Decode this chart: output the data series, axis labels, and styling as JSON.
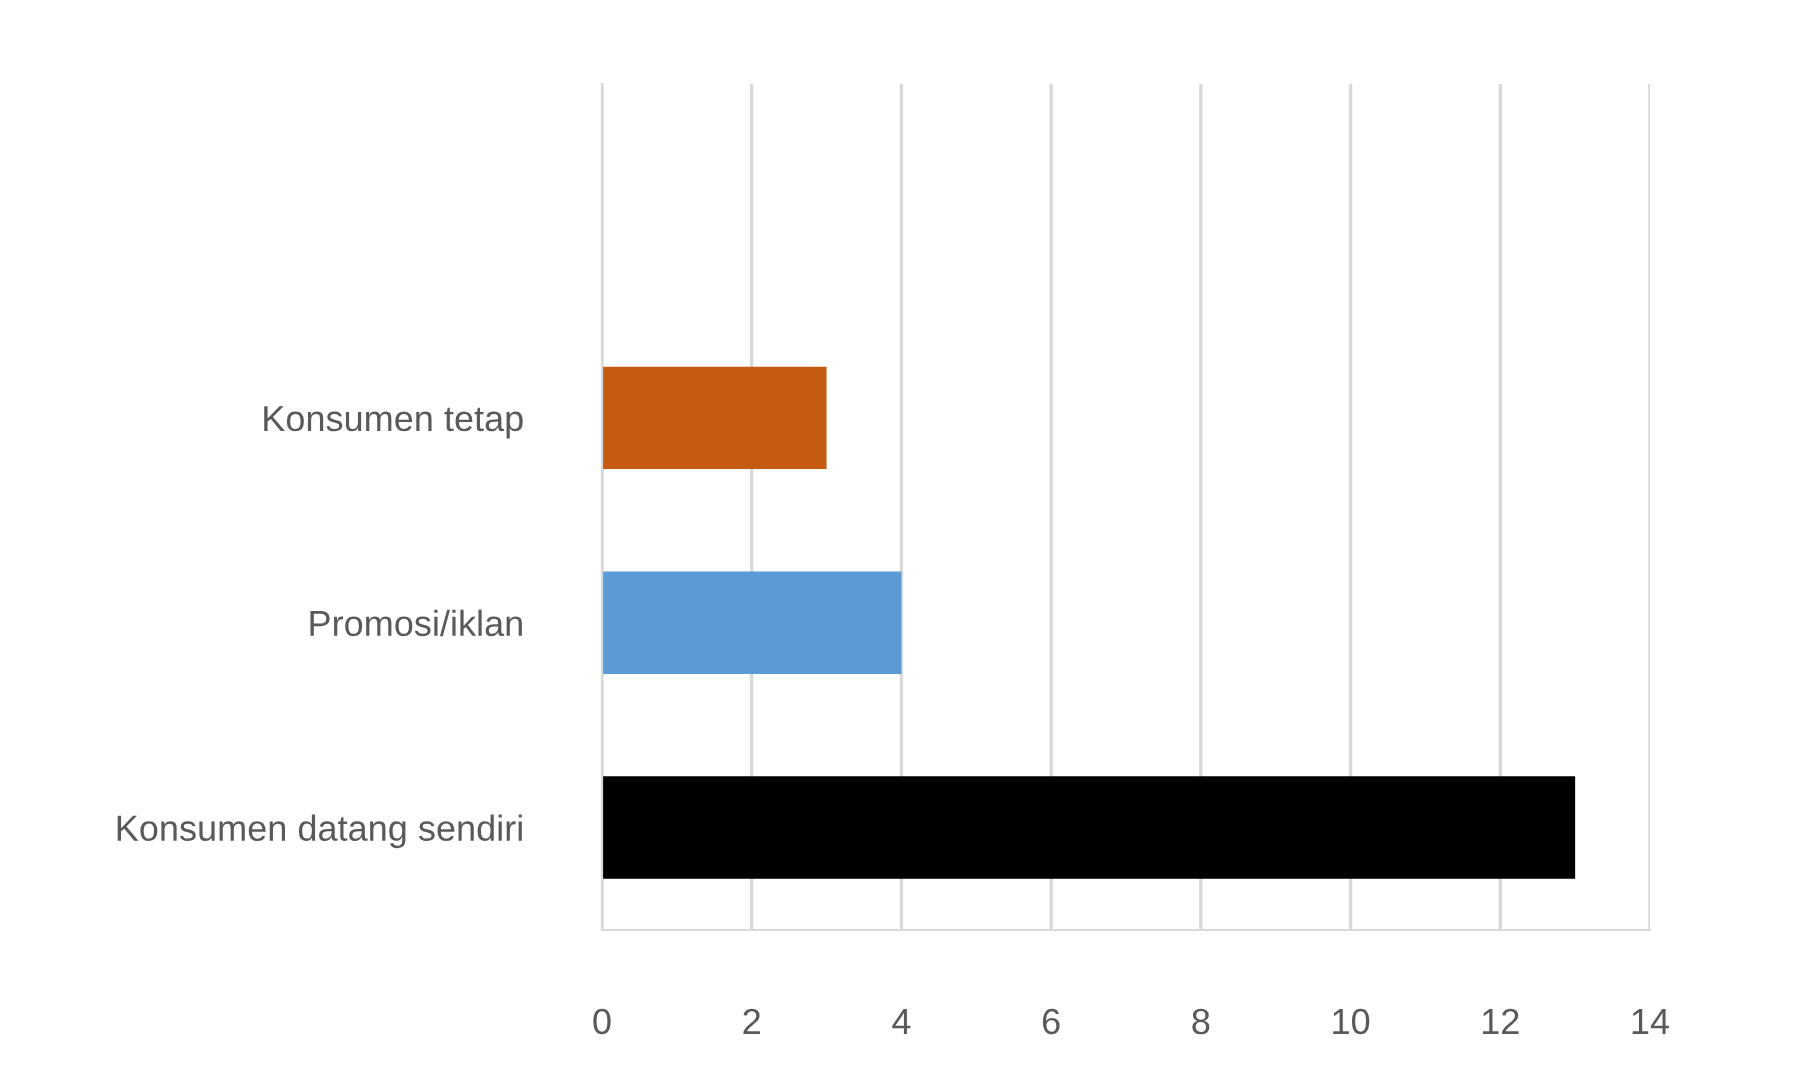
{
  "chart_data": {
    "type": "bar",
    "orientation": "horizontal",
    "categories": [
      "Konsumen tetap",
      "Promosi/iklan",
      "Konsumen datang sendiri"
    ],
    "values": [
      3,
      4,
      13
    ],
    "colors": [
      "#c55a11",
      "#5b9bd5",
      "#000000"
    ],
    "xlim": [
      0,
      14
    ],
    "xticks": [
      0,
      2,
      4,
      6,
      8,
      10,
      12,
      14
    ],
    "grid": "x"
  }
}
